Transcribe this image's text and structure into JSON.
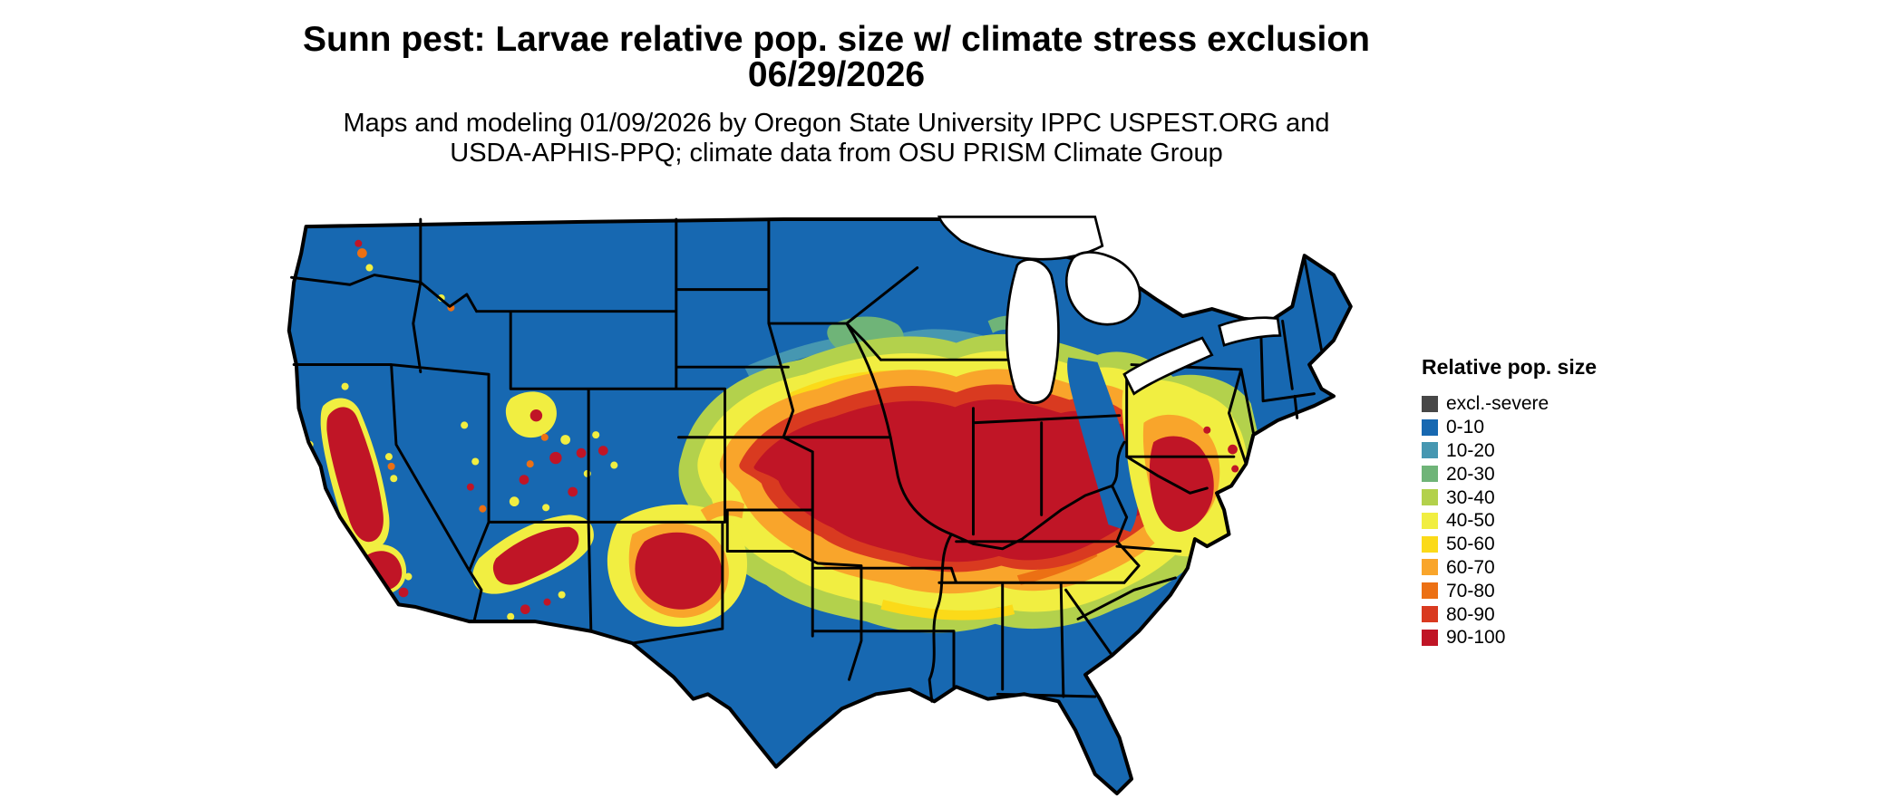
{
  "header": {
    "title_line1": "Sunn pest: Larvae relative pop. size w/ climate stress exclusion",
    "title_line2": "06/29/2026",
    "subtitle_line1": "Maps and modeling 01/09/2026 by Oregon State University IPPC USPEST.ORG and",
    "subtitle_line2": "USDA-APHIS-PPQ; climate data from OSU PRISM Climate Group"
  },
  "legend": {
    "title": "Relative pop. size",
    "items": [
      {
        "label": "excl.-severe",
        "color": "#474747"
      },
      {
        "label": "0-10",
        "color": "#1768b1"
      },
      {
        "label": "10-20",
        "color": "#4697b1"
      },
      {
        "label": "20-30",
        "color": "#6fb478"
      },
      {
        "label": "30-40",
        "color": "#b3d14c"
      },
      {
        "label": "40-50",
        "color": "#f1ee41"
      },
      {
        "label": "50-60",
        "color": "#fbda19"
      },
      {
        "label": "60-70",
        "color": "#f9a52b"
      },
      {
        "label": "70-80",
        "color": "#ec7014"
      },
      {
        "label": "80-90",
        "color": "#d93a20"
      },
      {
        "label": "90-100",
        "color": "#c01526"
      }
    ]
  },
  "map": {
    "region": "Conterminous United States",
    "water_color": "#ffffff",
    "boundary_color": "#000000",
    "high_population_areas": "Central US band (Kansas-Missouri-Illinois-Kentucky-Tennessee-Virginia), California Central Valley, Arizona rim, west Texas / east New Mexico, Chesapeake coastal plain",
    "low_population_areas": "Pacific Northwest, northern plains, Rockies, Gulf coast, Florida, New England"
  }
}
